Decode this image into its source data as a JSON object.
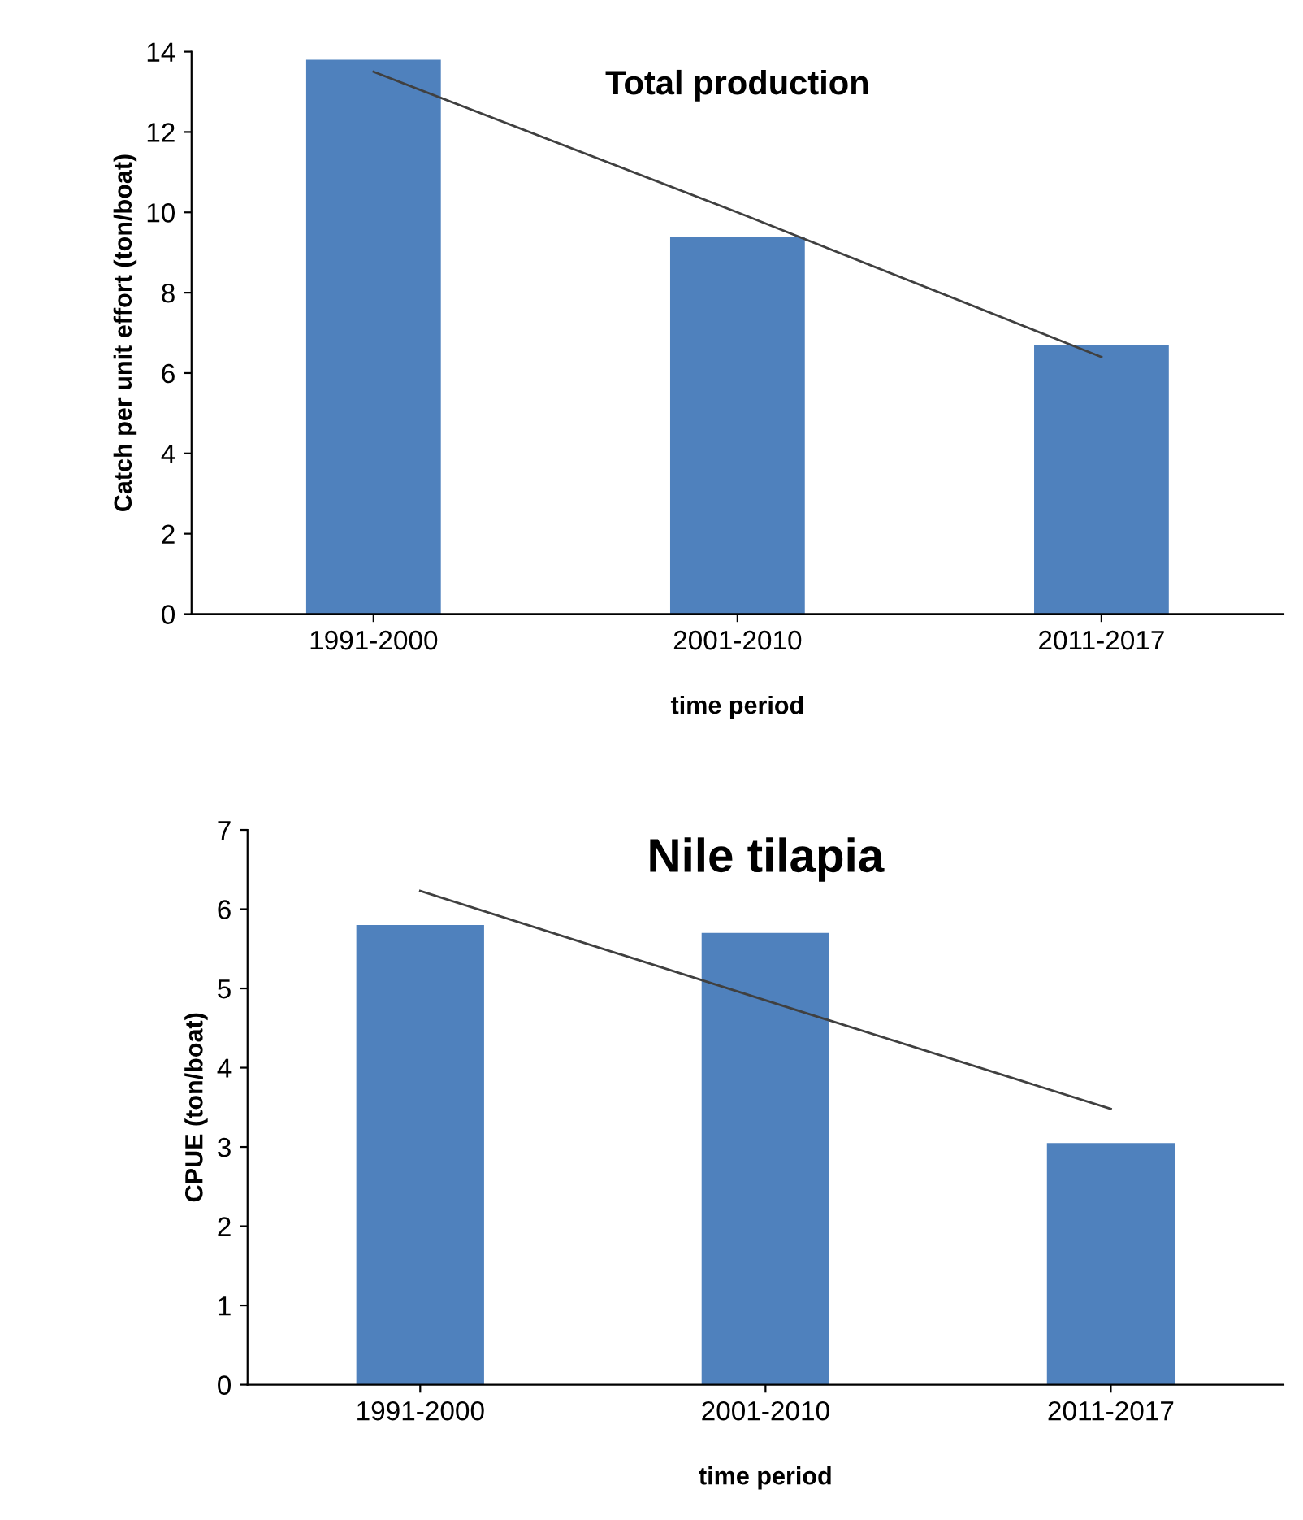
{
  "chart_data": [
    {
      "type": "bar",
      "title": "Total production",
      "xlabel": "time period",
      "ylabel": "Catch per unit effort (ton/boat)",
      "categories": [
        "1991-2000",
        "2001-2010",
        "2011-2017"
      ],
      "series": [
        {
          "color": "#4f81bd",
          "values": [
            13.8,
            9.4,
            6.7
          ]
        },
        {
          "type": "line",
          "color": "#404040",
          "values": [
            13.5,
            10.0,
            6.4
          ]
        }
      ],
      "ylim": [
        0,
        14
      ],
      "yticks": [
        0,
        2,
        4,
        6,
        8,
        10,
        12,
        14
      ],
      "grid": false,
      "legend": false
    },
    {
      "type": "bar",
      "title": "Nile tilapia",
      "xlabel": "time period",
      "ylabel": "CPUE (ton/boat)",
      "categories": [
        "1991-2000",
        "2001-2010",
        "2011-2017"
      ],
      "series": [
        {
          "color": "#4f81bd",
          "values": [
            5.8,
            5.7,
            3.05
          ]
        },
        {
          "type": "line",
          "color": "#404040",
          "values": [
            6.23,
            4.85,
            3.48
          ]
        }
      ],
      "ylim": [
        0,
        7
      ],
      "yticks": [
        0,
        1,
        2,
        3,
        4,
        5,
        6,
        7
      ],
      "grid": false,
      "legend": false
    }
  ]
}
